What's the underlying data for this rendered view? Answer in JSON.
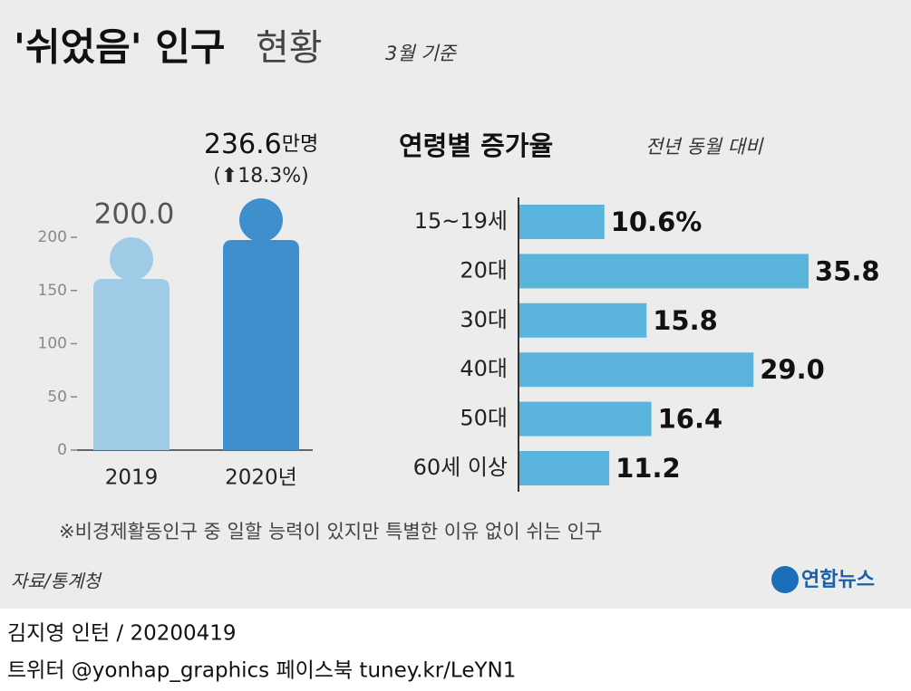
{
  "header": {
    "title": "'쉬었음' 인구",
    "title_light": "현황",
    "note": "3월 기준"
  },
  "chart_data": [
    {
      "type": "person-bar",
      "categories": [
        "2019",
        "2020년"
      ],
      "values": [
        200.0,
        236.6
      ],
      "value_labels": [
        "200.0",
        "236.6"
      ],
      "unit": "만명",
      "annotation": "(⬆18.3%)",
      "colors": [
        "#9fcbe6",
        "#3f8fcd"
      ],
      "ylim": [
        0,
        240
      ],
      "yticks": [
        0,
        50,
        100,
        150,
        200
      ]
    },
    {
      "type": "hbar",
      "title": "연령별 증가율",
      "subtitle": "전년 동월 대비",
      "categories": [
        "15~19세",
        "20대",
        "30대",
        "40대",
        "50대",
        "60세 이상"
      ],
      "values": [
        10.6,
        35.8,
        15.8,
        29.0,
        16.4,
        11.2
      ],
      "value_labels": [
        "10.6%",
        "35.8",
        "15.8",
        "29.0",
        "16.4",
        "11.2"
      ],
      "color": "#5ab4dc",
      "xlim": [
        0,
        40
      ]
    }
  ],
  "footnote": "※비경제활동인구 중 일할 능력이 있지만 특별한 이유 없이 쉬는 인구",
  "source": "자료/통계청",
  "logo": "연합뉴스",
  "credit": "김지영 인턴 / 20200419",
  "sns": "트위터 @yonhap_graphics  페이스북 tuney.kr/LeYN1"
}
